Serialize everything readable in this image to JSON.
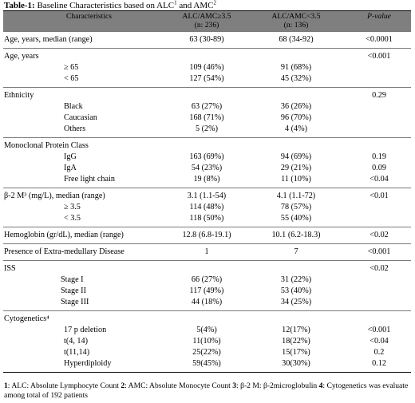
{
  "caption": {
    "label": "Table-1:",
    "text": " Baseline Characteristics based on ALC",
    "sup1": "1",
    "and": " and AMC",
    "sup2": "2"
  },
  "header": {
    "characteristics": "Characteristics",
    "group1_line1": "ALC/AMC≥3.5",
    "group1_line2": "(n: 236)",
    "group2_line1": "ALC/AMC<3.5",
    "group2_line2": "(n: 136)",
    "pvalue": "P-value"
  },
  "sections": [
    {
      "rows": [
        {
          "label": "Age, years, median (range)",
          "indent": 0,
          "g1": "63 (30-89)",
          "g2": "68 (34-92)",
          "p": "<0.0001"
        }
      ]
    },
    {
      "rows": [
        {
          "label": "Age, years",
          "indent": 0,
          "g1": "",
          "g2": "",
          "p": "<0.001"
        },
        {
          "label": "≥ 65",
          "indent": 1,
          "g1": "109 (46%)",
          "g2": "91 (68%)",
          "p": ""
        },
        {
          "label": "< 65",
          "indent": 1,
          "g1": "127 (54%)",
          "g2": "45 (32%)",
          "p": ""
        }
      ]
    },
    {
      "rows": [
        {
          "label": "Ethnicity",
          "indent": 0,
          "g1": "",
          "g2": "",
          "p": "0.29"
        },
        {
          "label": "Black",
          "indent": 1,
          "g1": "63 (27%)",
          "g2": "36 (26%)",
          "p": ""
        },
        {
          "label": "Caucasian",
          "indent": 1,
          "g1": "168 (71%)",
          "g2": "96 (70%)",
          "p": ""
        },
        {
          "label": "Others",
          "indent": 1,
          "g1": "5 (2%)",
          "g2": "4 (4%)",
          "p": ""
        }
      ]
    },
    {
      "rows": [
        {
          "label": "Monoclonal Protein Class",
          "indent": 0,
          "g1": "",
          "g2": "",
          "p": ""
        },
        {
          "label": "IgG",
          "indent": 1,
          "g1": "163 (69%)",
          "g2": "94 (69%)",
          "p": "0.19"
        },
        {
          "label": "IgA",
          "indent": 1,
          "g1": "54 (23%)",
          "g2": "29 (21%)",
          "p": "0.09"
        },
        {
          "label": "Free light chain",
          "indent": 1,
          "g1": "19 (8%)",
          "g2": "11 (10%)",
          "p": "<0.04"
        }
      ]
    },
    {
      "rows": [
        {
          "label": "β-2 M³ (mg/L), median (range)",
          "indent": 0,
          "g1": "3.1 (1.1-54)",
          "g2": "4.1 (1.1-72)",
          "p": "<0.01"
        },
        {
          "label": "≥ 3.5",
          "indent": 1,
          "g1": "114 (48%)",
          "g2": "78 (57%)",
          "p": ""
        },
        {
          "label": "< 3.5",
          "indent": 1,
          "g1": "118 (50%)",
          "g2": "55 (40%)",
          "p": ""
        }
      ]
    },
    {
      "rows": [
        {
          "label": "Hemoglobin (gr/dL), median (range)",
          "indent": 0,
          "g1": "12.8 (6.8-19.1)",
          "g2": "10.1 (6.2-18.3)",
          "p": "<0.02"
        }
      ]
    },
    {
      "rows": [
        {
          "label": "Presence of Extra-medullary Disease",
          "indent": 0,
          "g1": "1",
          "g2": "7",
          "p": "<0.001"
        }
      ]
    },
    {
      "rows": [
        {
          "label": "ISS",
          "indent": 0,
          "g1": "",
          "g2": "",
          "p": "<0.02"
        },
        {
          "label": "Stage    I",
          "indent": 2,
          "g1": "66 (27%)",
          "g2": "31 (22%)",
          "p": ""
        },
        {
          "label": "Stage  II",
          "indent": 2,
          "g1": "117 (49%)",
          "g2": "53 (40%)",
          "p": ""
        },
        {
          "label": "Stage III",
          "indent": 2,
          "g1": "44 (18%)",
          "g2": "34 (25%)",
          "p": ""
        }
      ]
    },
    {
      "rows": [
        {
          "label": "Cytogenetics⁴",
          "indent": 0,
          "g1": "",
          "g2": "",
          "p": ""
        },
        {
          "label": "17 p deletion",
          "indent": 3,
          "g1": "5(4%)",
          "g2": "12(17%)",
          "p": "<0.001"
        },
        {
          "label": "t(4, 14)",
          "indent": 3,
          "g1": "11(10%)",
          "g2": "18(22%)",
          "p": "<0.04"
        },
        {
          "label": "t(11,14)",
          "indent": 3,
          "g1": "25(22%)",
          "g2": "15(17%)",
          "p": "0.2"
        },
        {
          "label": "Hyperdiploidy",
          "indent": 3,
          "g1": "59(45%)",
          "g2": "30(30%)",
          "p": "0.12"
        }
      ]
    }
  ],
  "footnote": {
    "n1": "1",
    "t1": ": ALC: Absolute Lymphocyte Count  ",
    "n2": "2",
    "t2": ": AMC: Absolute Monocyte Count  ",
    "n3": "3",
    "t3": ": β-2 M: β-2microglobulin ",
    "n4": "4",
    "t4": ": Cytogenetics was evaluate among total of 192 patients"
  }
}
